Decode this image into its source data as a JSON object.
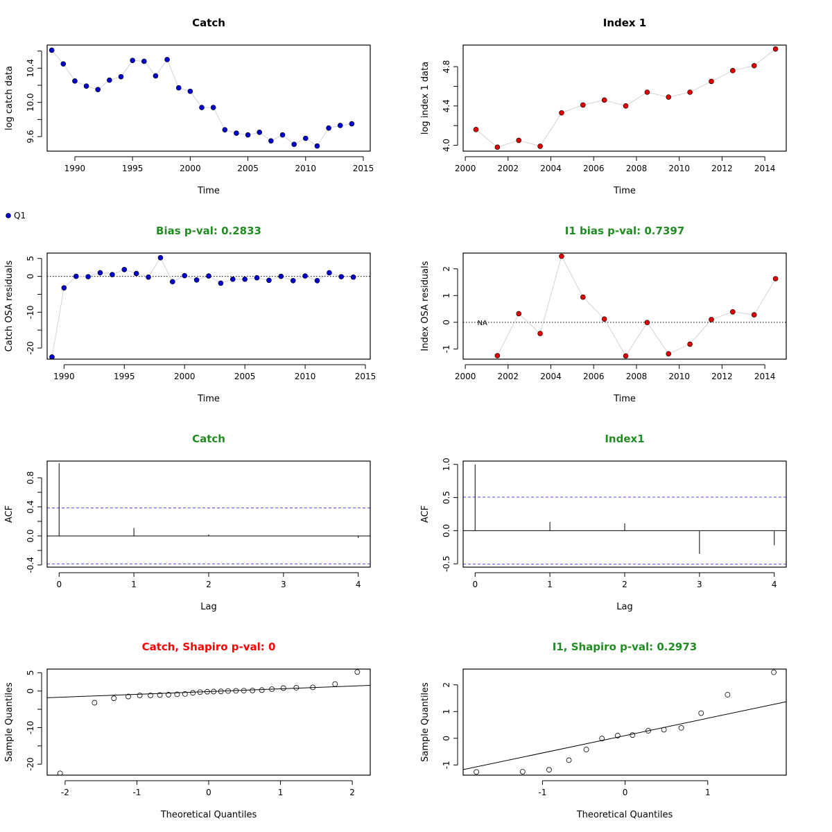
{
  "legend": {
    "label": "Q1",
    "marker_color": "#0000cd"
  },
  "colors": {
    "catch_points": "#0000cd",
    "index_points": "#e00000",
    "connector": "#d3d3d3",
    "title_default": "#000000",
    "title_pass": "#228b22",
    "title_fail": "#ff0000",
    "ci_line": "#4444ff"
  },
  "chart_data": [
    {
      "id": "catch-log",
      "type": "scatter",
      "title": "Catch",
      "title_status": "default",
      "xlabel": "Time",
      "ylabel": "log catch data",
      "xlim": [
        1987.6,
        2015.6
      ],
      "ylim": [
        9.43,
        10.67
      ],
      "xticks": [
        1990,
        1995,
        2000,
        2005,
        2010,
        2015
      ],
      "yticks": [
        9.6,
        10.0,
        10.4
      ],
      "yminor": [
        9.8,
        10.2,
        10.6
      ],
      "connect": true,
      "point_color": "catch",
      "x": [
        1988,
        1989,
        1990,
        1991,
        1992,
        1993,
        1994,
        1995,
        1996,
        1997,
        1998,
        1999,
        2000,
        2001,
        2002,
        2003,
        2004,
        2005,
        2006,
        2007,
        2008,
        2009,
        2010,
        2011,
        2012,
        2013,
        2014
      ],
      "y": [
        10.61,
        10.45,
        10.25,
        10.19,
        10.15,
        10.26,
        10.3,
        10.49,
        10.48,
        10.31,
        10.5,
        10.17,
        10.13,
        9.94,
        9.94,
        9.68,
        9.64,
        9.62,
        9.65,
        9.55,
        9.62,
        9.51,
        9.58,
        9.49,
        9.7,
        9.73,
        9.75
      ]
    },
    {
      "id": "index-log",
      "type": "scatter",
      "title": "Index 1",
      "title_status": "default",
      "xlabel": "Time",
      "ylabel": "log index 1 data",
      "xlim": [
        1999.9,
        2015.0
      ],
      "ylim": [
        3.94,
        5.02
      ],
      "xticks": [
        2000,
        2002,
        2004,
        2006,
        2008,
        2010,
        2012,
        2014
      ],
      "yticks": [
        4.0,
        4.4,
        4.8
      ],
      "yminor": [
        4.2,
        4.6
      ],
      "connect": true,
      "point_color": "index",
      "x": [
        2000.5,
        2001.5,
        2002.5,
        2003.5,
        2004.5,
        2005.5,
        2006.5,
        2007.5,
        2008.5,
        2009.5,
        2010.5,
        2011.5,
        2012.5,
        2013.5,
        2014.5
      ],
      "y": [
        4.16,
        3.98,
        4.05,
        3.99,
        4.33,
        4.41,
        4.46,
        4.4,
        4.54,
        4.49,
        4.54,
        4.65,
        4.76,
        4.81,
        4.98
      ]
    },
    {
      "id": "catch-osa",
      "type": "scatter",
      "title": "Bias p-val: 0.2833",
      "title_status": "pass",
      "xlabel": "Time",
      "ylabel": "Catch OSA residuals",
      "xlim": [
        1988.6,
        2015.4
      ],
      "ylim": [
        -23.1,
        6.5
      ],
      "xticks": [
        1990,
        1995,
        2000,
        2005,
        2010,
        2015
      ],
      "yticks": [
        -20,
        -10,
        0,
        5
      ],
      "yminor": [
        -15,
        -5
      ],
      "connect": true,
      "zero_line": true,
      "point_color": "catch",
      "x": [
        1989,
        1990,
        1991,
        1992,
        1993,
        1994,
        1995,
        1996,
        1997,
        1998,
        1999,
        2000,
        2001,
        2002,
        2003,
        2004,
        2005,
        2006,
        2007,
        2008,
        2009,
        2010,
        2011,
        2012,
        2013,
        2014
      ],
      "y": [
        -22.5,
        -3.2,
        0.0,
        -0.1,
        1.0,
        0.5,
        1.9,
        0.8,
        -0.2,
        5.2,
        -1.5,
        0.2,
        -1.0,
        0.1,
        -1.9,
        -0.8,
        -0.8,
        -0.4,
        -1.1,
        0.0,
        -1.2,
        0.1,
        -1.2,
        1.0,
        -0.1,
        -0.2
      ]
    },
    {
      "id": "index-osa",
      "type": "scatter",
      "title": "I1 bias p-val: 0.7397",
      "title_status": "pass",
      "xlabel": "Time",
      "ylabel": "Index OSA residuals",
      "xlim": [
        1999.9,
        2015.0
      ],
      "ylim": [
        -1.38,
        2.59
      ],
      "xticks": [
        2000,
        2002,
        2004,
        2006,
        2008,
        2010,
        2012,
        2014
      ],
      "yticks": [
        -1,
        0,
        1,
        2
      ],
      "connect": true,
      "zero_line": true,
      "point_color": "index",
      "annotation": {
        "text": "NA",
        "x": 2000.5,
        "y": 0.0
      },
      "x": [
        2001.5,
        2002.5,
        2003.5,
        2004.5,
        2005.5,
        2006.5,
        2007.5,
        2008.5,
        2009.5,
        2010.5,
        2011.5,
        2012.5,
        2013.5,
        2014.5
      ],
      "y": [
        -1.25,
        0.32,
        -0.42,
        2.47,
        0.94,
        0.12,
        -1.26,
        -0.01,
        -1.18,
        -0.82,
        0.1,
        0.39,
        0.28,
        1.63
      ]
    },
    {
      "id": "catch-acf",
      "type": "acf",
      "title": "Catch",
      "title_status": "pass",
      "xlabel": "Lag",
      "ylabel": "ACF",
      "xlim": [
        -0.16,
        4.16
      ],
      "ylim": [
        -0.43,
        1.03
      ],
      "xticks": [
        0,
        1,
        2,
        3,
        4
      ],
      "yticks": [
        -0.4,
        0.0,
        0.4,
        0.8
      ],
      "yminor": [
        -0.2,
        0.2,
        0.6
      ],
      "ci": 0.385,
      "lags": [
        0,
        1,
        2,
        3,
        4
      ],
      "values": [
        1.0,
        0.11,
        0.02,
        0.0,
        -0.03
      ]
    },
    {
      "id": "index-acf",
      "type": "acf",
      "title": "Index1",
      "title_status": "pass",
      "xlabel": "Lag",
      "ylabel": "ACF",
      "xlim": [
        -0.16,
        4.16
      ],
      "ylim": [
        -0.55,
        1.05
      ],
      "xticks": [
        0,
        1,
        2,
        3,
        4
      ],
      "yticks": [
        -0.5,
        0.0,
        0.5,
        1.0
      ],
      "ci": 0.506,
      "lags": [
        0,
        1,
        2,
        3,
        4
      ],
      "values": [
        1.0,
        0.13,
        0.11,
        -0.35,
        -0.22
      ]
    },
    {
      "id": "catch-qq",
      "type": "qq",
      "title": "Catch, Shapiro p-val: 0",
      "title_status": "fail",
      "xlabel": "Theoretical Quantiles",
      "ylabel": "Sample Quantiles",
      "xlim": [
        -2.25,
        2.25
      ],
      "ylim": [
        -23.0,
        6.0
      ],
      "xticks": [
        -2,
        -1,
        0,
        1,
        2
      ],
      "yticks": [
        -20,
        -10,
        0,
        5
      ],
      "yminor": [
        -15,
        -5
      ],
      "line": {
        "intercept": -0.15,
        "slope": 0.75
      },
      "x": [
        -2.07,
        -1.59,
        -1.32,
        -1.12,
        -0.96,
        -0.81,
        -0.68,
        -0.56,
        -0.44,
        -0.33,
        -0.22,
        -0.12,
        -0.02,
        0.07,
        0.17,
        0.27,
        0.38,
        0.49,
        0.61,
        0.74,
        0.88,
        1.04,
        1.22,
        1.45,
        1.76,
        2.07
      ],
      "y": [
        -22.5,
        -3.2,
        -2.0,
        -1.5,
        -1.2,
        -1.2,
        -1.1,
        -1.0,
        -0.9,
        -0.8,
        -0.5,
        -0.3,
        -0.2,
        -0.15,
        -0.1,
        0.0,
        0.05,
        0.1,
        0.15,
        0.25,
        0.5,
        0.8,
        0.9,
        1.0,
        1.9,
        5.2
      ]
    },
    {
      "id": "index-qq",
      "type": "qq",
      "title": "I1, Shapiro p-val: 0.2973",
      "title_status": "pass",
      "xlabel": "Theoretical Quantiles",
      "ylabel": "Sample Quantiles",
      "xlim": [
        -1.96,
        1.95
      ],
      "ylim": [
        -1.38,
        2.59
      ],
      "xticks": [
        -1,
        0,
        1
      ],
      "yticks": [
        -1,
        0,
        1,
        2
      ],
      "line": {
        "intercept": 0.1,
        "slope": 0.65
      },
      "x": [
        -1.8,
        -1.24,
        -0.92,
        -0.68,
        -0.47,
        -0.28,
        -0.09,
        0.09,
        0.28,
        0.47,
        0.68,
        0.92,
        1.24,
        1.8
      ],
      "y": [
        -1.26,
        -1.25,
        -1.18,
        -0.82,
        -0.42,
        -0.01,
        0.1,
        0.12,
        0.28,
        0.32,
        0.39,
        0.94,
        1.63,
        2.47
      ]
    }
  ]
}
